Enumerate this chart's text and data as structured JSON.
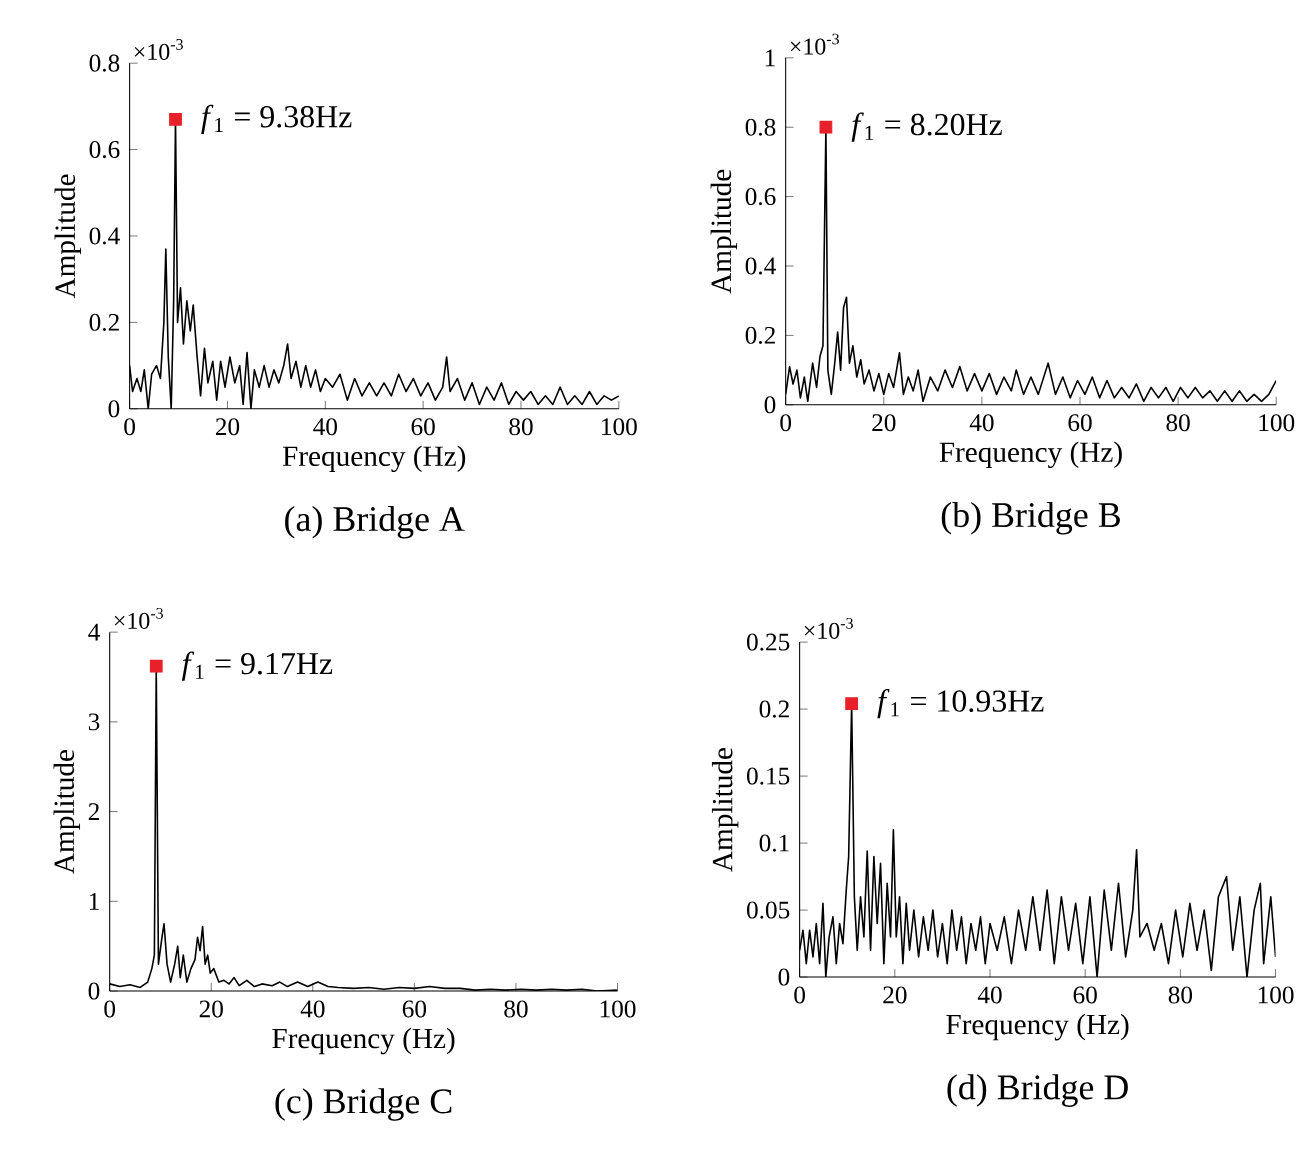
{
  "chart_data": [
    {
      "type": "line",
      "title": "(a) Bridge A",
      "xlabel": "Frequency (Hz)",
      "ylabel": "Amplitude",
      "xlim": [
        0,
        100
      ],
      "ylim": [
        0,
        0.8
      ],
      "xticks": [
        0,
        20,
        40,
        60,
        80,
        100
      ],
      "yticks": [
        0,
        0.2,
        0.4,
        0.6,
        0.8
      ],
      "annotations": [
        "×10$^{-3}$",
        {
          "text": "*f*$_{1}$ = 9.38Hz",
          "x": 9.38,
          "y": 0.67
        }
      ],
      "series": [
        {
          "color": "#000000",
          "x": [
            0,
            0.6,
            1.5,
            2.3,
            3,
            3.8,
            4.5,
            5.5,
            6.3,
            7,
            7.4,
            7.9,
            8.5,
            9,
            9.38,
            9.8,
            10.4,
            11,
            11.7,
            12.4,
            13,
            13.8,
            14.5,
            15.3,
            16,
            17,
            17.8,
            18.6,
            19.5,
            20.5,
            21.5,
            22.5,
            23.2,
            24,
            24.8,
            25.5,
            26.5,
            27.5,
            28.5,
            29.5,
            30.5,
            31.5,
            32.3,
            33,
            34,
            35,
            36,
            37,
            38,
            39,
            40,
            41.5,
            43,
            44.5,
            46,
            47.5,
            49,
            50.5,
            52,
            53.5,
            55,
            56.5,
            58,
            59.5,
            61,
            62.5,
            64,
            64.8,
            65.5,
            67,
            68.5,
            70,
            71.5,
            73,
            74.5,
            76,
            77.5,
            79,
            80.5,
            82,
            83.5,
            85,
            86.5,
            88,
            89.5,
            91,
            92.5,
            94,
            95.5,
            97,
            98.5,
            100
          ],
          "values": [
            0.1,
            0.04,
            0.07,
            0.04,
            0.09,
            0.0,
            0.08,
            0.1,
            0.07,
            0.2,
            0.37,
            0.12,
            0.0,
            0.25,
            0.67,
            0.2,
            0.28,
            0.15,
            0.25,
            0.18,
            0.24,
            0.12,
            0.03,
            0.14,
            0.06,
            0.11,
            0.02,
            0.11,
            0.05,
            0.12,
            0.06,
            0.1,
            0.01,
            0.13,
            0.0,
            0.09,
            0.05,
            0.1,
            0.05,
            0.09,
            0.06,
            0.1,
            0.15,
            0.07,
            0.11,
            0.05,
            0.1,
            0.05,
            0.09,
            0.04,
            0.07,
            0.05,
            0.08,
            0.02,
            0.07,
            0.03,
            0.06,
            0.03,
            0.06,
            0.03,
            0.08,
            0.04,
            0.07,
            0.03,
            0.06,
            0.02,
            0.05,
            0.12,
            0.04,
            0.07,
            0.02,
            0.06,
            0.01,
            0.05,
            0.02,
            0.06,
            0.01,
            0.04,
            0.02,
            0.04,
            0.01,
            0.03,
            0.01,
            0.05,
            0.01,
            0.03,
            0.01,
            0.04,
            0.01,
            0.03,
            0.02,
            0.03
          ]
        },
        {
          "type": "scatter",
          "color": "#e8202a",
          "marker": "square",
          "x": [
            9.38
          ],
          "values": [
            0.67
          ]
        }
      ]
    },
    {
      "type": "line",
      "title": "(b) Bridge B",
      "xlabel": "Frequency (Hz)",
      "ylabel": "Amplitude",
      "xlim": [
        0,
        100
      ],
      "ylim": [
        0,
        1
      ],
      "xticks": [
        0,
        20,
        40,
        60,
        80,
        100
      ],
      "yticks": [
        0,
        0.2,
        0.4,
        0.6,
        0.8,
        1
      ],
      "annotations": [
        "×10$^{-3}$",
        {
          "text": "*f*$_{1}$ = 8.20Hz",
          "x": 8.2,
          "y": 0.8
        }
      ],
      "series": [
        {
          "color": "#000000",
          "x": [
            0,
            0.8,
            1.5,
            2.3,
            3,
            3.8,
            4.5,
            5.5,
            6.3,
            7,
            7.6,
            8.2,
            8.6,
            9.3,
            10,
            10.6,
            11.2,
            11.8,
            12.4,
            13,
            13.7,
            14.5,
            15.3,
            16,
            17,
            18,
            19,
            20,
            21,
            22,
            23.2,
            24,
            25,
            26,
            27,
            28,
            29.5,
            31,
            32.5,
            34,
            35.5,
            37,
            38.5,
            40,
            41.5,
            43,
            44.5,
            46,
            47,
            48.5,
            50,
            51.5,
            53.5,
            55,
            56.5,
            58,
            59.5,
            61,
            62.5,
            64,
            65.5,
            67,
            68.5,
            70,
            71.5,
            73,
            74.5,
            76,
            77.5,
            79,
            80.5,
            82,
            83.5,
            85,
            86.5,
            88,
            89.5,
            91,
            92.5,
            94,
            95.5,
            97,
            98.5,
            100
          ],
          "values": [
            0.03,
            0.11,
            0.06,
            0.1,
            0.02,
            0.08,
            0.01,
            0.12,
            0.05,
            0.14,
            0.17,
            0.8,
            0.1,
            0.03,
            0.12,
            0.21,
            0.1,
            0.28,
            0.31,
            0.12,
            0.17,
            0.08,
            0.13,
            0.06,
            0.1,
            0.04,
            0.09,
            0.03,
            0.09,
            0.05,
            0.15,
            0.03,
            0.08,
            0.04,
            0.1,
            0.01,
            0.08,
            0.04,
            0.1,
            0.05,
            0.11,
            0.04,
            0.09,
            0.04,
            0.09,
            0.03,
            0.08,
            0.04,
            0.1,
            0.03,
            0.08,
            0.03,
            0.12,
            0.03,
            0.08,
            0.02,
            0.07,
            0.03,
            0.08,
            0.02,
            0.07,
            0.02,
            0.05,
            0.02,
            0.06,
            0.01,
            0.05,
            0.02,
            0.05,
            0.01,
            0.05,
            0.02,
            0.05,
            0.02,
            0.04,
            0.01,
            0.04,
            0.01,
            0.04,
            0.01,
            0.03,
            0.01,
            0.03,
            0.07
          ]
        },
        {
          "type": "scatter",
          "color": "#e8202a",
          "marker": "square",
          "x": [
            8.2
          ],
          "values": [
            0.8
          ]
        }
      ]
    },
    {
      "type": "line",
      "title": "(c) Bridge C",
      "xlabel": "Frequency (Hz)",
      "ylabel": "Amplitude",
      "xlim": [
        0,
        100
      ],
      "ylim": [
        0,
        4
      ],
      "xticks": [
        0,
        20,
        40,
        60,
        80,
        100
      ],
      "yticks": [
        0,
        1,
        2,
        3,
        4
      ],
      "annotations": [
        "×10$^{-3}$",
        {
          "text": "*f*$_{1}$ = 9.17Hz",
          "x": 9.17,
          "y": 3.62
        }
      ],
      "series": [
        {
          "color": "#000000",
          "x": [
            0,
            2,
            4,
            6,
            7.5,
            8.3,
            8.8,
            9.17,
            9.6,
            10.3,
            10.7,
            11.3,
            12,
            12.8,
            13.4,
            13.9,
            14.5,
            15.2,
            16,
            16.8,
            17.3,
            17.8,
            18.3,
            18.8,
            19.3,
            19.8,
            20.5,
            21.5,
            22.5,
            23.5,
            24.5,
            25.5,
            27,
            28.5,
            30,
            32,
            33.5,
            35,
            37,
            39,
            41,
            43,
            45,
            48,
            51,
            54,
            57,
            60,
            63,
            66,
            69,
            72,
            75,
            78,
            81,
            84,
            87,
            90,
            93,
            96,
            100
          ],
          "values": [
            0.08,
            0.05,
            0.07,
            0.04,
            0.1,
            0.25,
            0.4,
            3.62,
            0.3,
            0.6,
            0.75,
            0.3,
            0.1,
            0.3,
            0.5,
            0.15,
            0.4,
            0.1,
            0.25,
            0.35,
            0.6,
            0.45,
            0.72,
            0.3,
            0.4,
            0.2,
            0.25,
            0.1,
            0.12,
            0.08,
            0.15,
            0.06,
            0.12,
            0.05,
            0.08,
            0.06,
            0.1,
            0.05,
            0.1,
            0.05,
            0.1,
            0.05,
            0.04,
            0.03,
            0.04,
            0.02,
            0.04,
            0.03,
            0.05,
            0.03,
            0.03,
            0.01,
            0.02,
            0.01,
            0.02,
            0.01,
            0.02,
            0.01,
            0.02,
            0.0,
            0.01
          ]
        },
        {
          "type": "scatter",
          "color": "#e8202a",
          "marker": "square",
          "x": [
            9.17
          ],
          "values": [
            3.62
          ]
        }
      ]
    },
    {
      "type": "line",
      "title": "(d) Bridge D",
      "xlabel": "Frequency (Hz)",
      "ylabel": "Amplitude",
      "xlim": [
        0,
        100
      ],
      "ylim": [
        0,
        0.25
      ],
      "xticks": [
        0,
        20,
        40,
        60,
        80,
        100
      ],
      "yticks": [
        0,
        0.05,
        0.1,
        0.15,
        0.2,
        0.25
      ],
      "annotations": [
        "×10$^{-3}$",
        {
          "text": "*f*$_{1}$ = 10.93Hz",
          "x": 10.93,
          "y": 0.204
        }
      ],
      "series": [
        {
          "color": "#000000",
          "x": [
            0,
            0.7,
            1.4,
            2.1,
            2.8,
            3.5,
            4.2,
            4.9,
            5.5,
            6.2,
            7,
            7.7,
            8.4,
            9.1,
            9.8,
            10.3,
            10.93,
            11.5,
            12.1,
            12.8,
            13.5,
            14.2,
            14.9,
            15.6,
            16.3,
            17,
            17.7,
            18.4,
            19.1,
            19.7,
            20.3,
            21,
            21.7,
            22.4,
            23.1,
            24,
            25,
            26,
            27,
            28,
            29,
            30,
            31,
            32,
            33,
            34,
            35,
            36,
            37,
            38,
            39,
            40,
            41.5,
            43,
            44.5,
            46,
            47.5,
            49,
            50.5,
            52,
            53.5,
            55,
            56.5,
            58,
            59.5,
            61,
            62.5,
            64,
            65.5,
            67,
            68.5,
            70,
            70.8,
            71.5,
            73,
            74.5,
            76,
            77.5,
            79,
            80.5,
            82,
            83.5,
            85,
            86.5,
            88,
            89.7,
            91,
            92.5,
            94,
            95.5,
            96.8,
            97.5,
            99,
            100
          ],
          "values": [
            0.02,
            0.035,
            0.01,
            0.035,
            0.015,
            0.04,
            0.01,
            0.055,
            0.0,
            0.03,
            0.045,
            0.01,
            0.04,
            0.025,
            0.065,
            0.09,
            0.204,
            0.06,
            0.02,
            0.06,
            0.03,
            0.094,
            0.02,
            0.09,
            0.04,
            0.085,
            0.01,
            0.07,
            0.03,
            0.11,
            0.03,
            0.06,
            0.01,
            0.055,
            0.02,
            0.05,
            0.015,
            0.045,
            0.02,
            0.05,
            0.015,
            0.04,
            0.01,
            0.05,
            0.02,
            0.045,
            0.01,
            0.04,
            0.02,
            0.045,
            0.01,
            0.04,
            0.02,
            0.045,
            0.01,
            0.05,
            0.02,
            0.06,
            0.02,
            0.065,
            0.01,
            0.06,
            0.02,
            0.055,
            0.01,
            0.06,
            0.0,
            0.065,
            0.02,
            0.07,
            0.015,
            0.05,
            0.095,
            0.03,
            0.04,
            0.02,
            0.04,
            0.01,
            0.05,
            0.015,
            0.055,
            0.02,
            0.05,
            0.005,
            0.06,
            0.075,
            0.02,
            0.06,
            0.0,
            0.05,
            0.07,
            0.01,
            0.06,
            0.015
          ]
        },
        {
          "type": "scatter",
          "color": "#e8202a",
          "marker": "square",
          "x": [
            10.93
          ],
          "values": [
            0.204
          ]
        }
      ]
    }
  ]
}
